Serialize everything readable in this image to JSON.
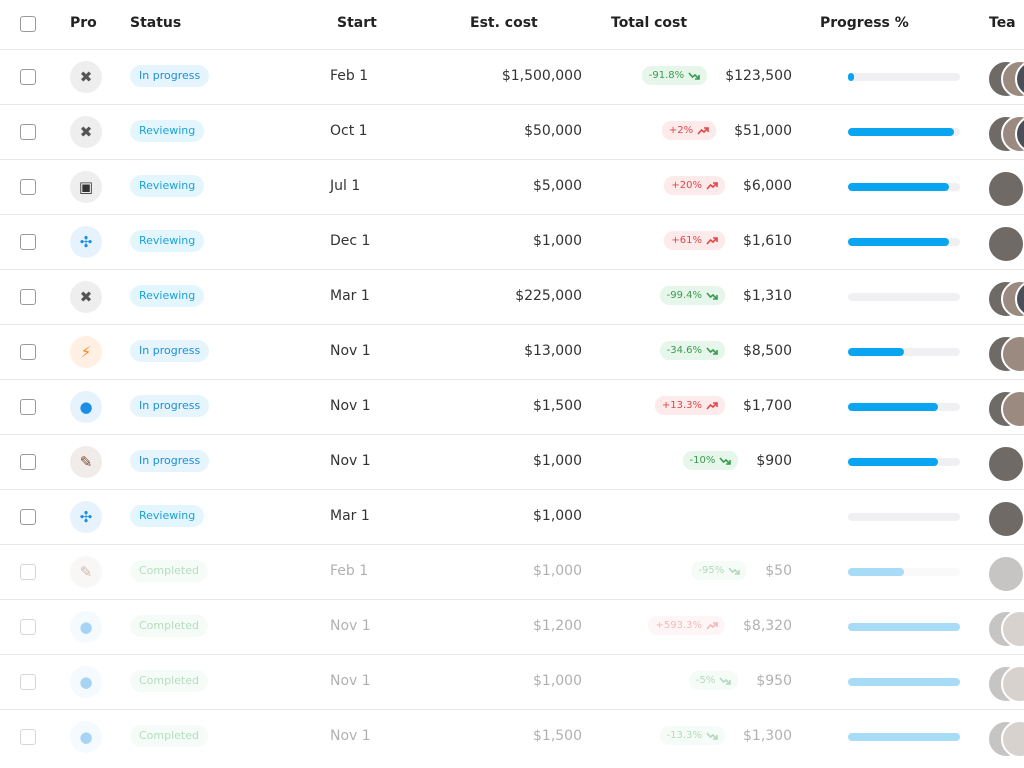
{
  "header": {
    "columns": [
      "Pro",
      "Status",
      "Start",
      "Est. cost",
      "Total cost",
      "Progress %",
      "Tea"
    ]
  },
  "table": {
    "rows": [
      {
        "status": "In progress",
        "start": "Feb 1",
        "est_cost": "$1,500,000",
        "change": "-91.8%",
        "total_cost": "$123,500",
        "progress": 5
      },
      {
        "status": "Reviewing",
        "start": "Oct 1",
        "est_cost": "$50,000",
        "change": "+2%",
        "total_cost": "$51,000",
        "progress": 95
      },
      {
        "status": "Reviewing",
        "start": "Jul 1",
        "est_cost": "$5,000",
        "change": "+20%",
        "total_cost": "$6,000",
        "progress": 90
      },
      {
        "status": "Reviewing",
        "start": "Dec 1",
        "est_cost": "$1,000",
        "change": "+61%",
        "total_cost": "$1,610",
        "progress": 90
      },
      {
        "status": "Reviewing",
        "start": "Mar 1",
        "est_cost": "$225,000",
        "change": "-99.4%",
        "total_cost": "$1,310",
        "progress": 0
      },
      {
        "status": "In progress",
        "start": "Nov 1",
        "est_cost": "$13,000",
        "change": "-34.6%",
        "total_cost": "$8,500",
        "progress": 50
      },
      {
        "status": "In progress",
        "start": "Nov 1",
        "est_cost": "$1,500",
        "change": "+13.3%",
        "total_cost": "$1,700",
        "progress": 80
      },
      {
        "status": "In progress",
        "start": "Nov 1",
        "est_cost": "$1,000",
        "change": "-10%",
        "total_cost": "$900",
        "progress": 80
      },
      {
        "status": "Reviewing",
        "start": "Mar 1",
        "est_cost": "$1,000",
        "change": null,
        "total_cost": null,
        "progress": 0
      },
      {
        "status": "Completed",
        "start": "Feb 1",
        "est_cost": "$1,000",
        "change": "-95%",
        "total_cost": "$50",
        "progress": 50
      },
      {
        "status": "Completed",
        "start": "Nov 1",
        "est_cost": "$1,200",
        "change": "+593.3%",
        "total_cost": "$8,320",
        "progress": 100
      },
      {
        "status": "Completed",
        "start": "Nov 1",
        "est_cost": "$1,000",
        "change": "-5%",
        "total_cost": "$950",
        "progress": 100
      },
      {
        "status": "Completed",
        "start": "Nov 1",
        "est_cost": "$1,500",
        "change": "-13.3%",
        "total_cost": "$1,300",
        "progress": 100
      }
    ]
  }
}
